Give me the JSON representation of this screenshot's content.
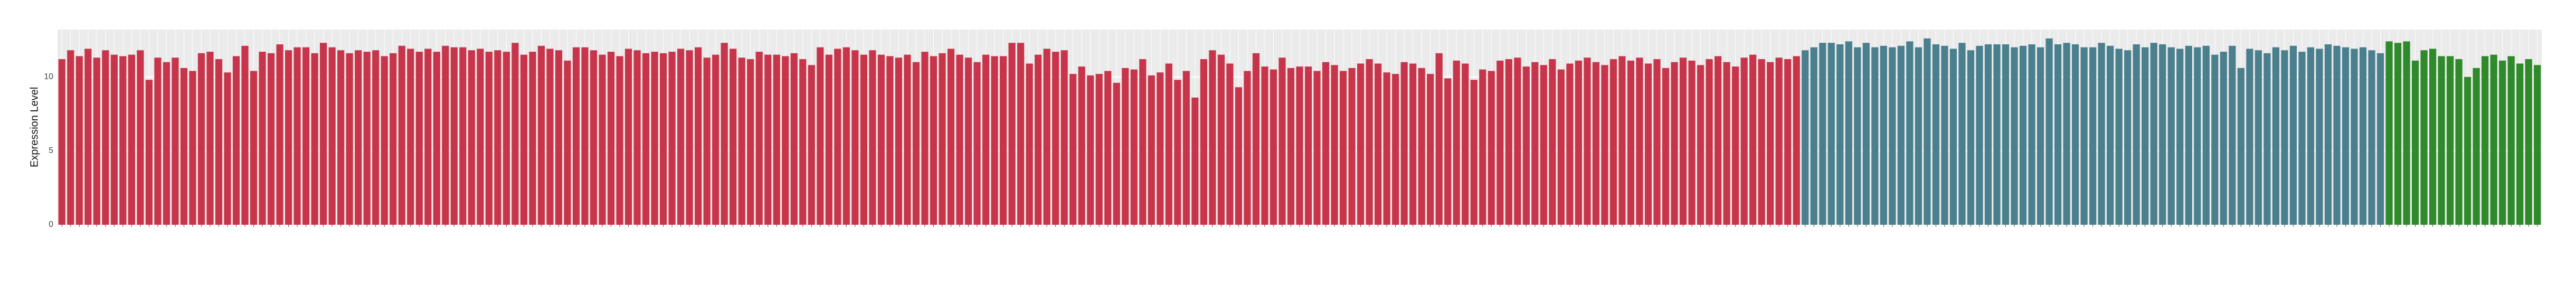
{
  "chart_data": {
    "type": "bar",
    "y_label": "Expression Level",
    "ylim": [
      0,
      13.2
    ],
    "yticks": [
      0,
      5,
      10
    ],
    "grid": true,
    "series": [
      {
        "color": "#c8354b",
        "categories": [
          null,
          null,
          null,
          null,
          null,
          null,
          null,
          null,
          null,
          null,
          null,
          null,
          null,
          null,
          null,
          null,
          null,
          null,
          null,
          null,
          null,
          null,
          null,
          null,
          null,
          null,
          null,
          null,
          null,
          null,
          null,
          null,
          null,
          null,
          null,
          null,
          null,
          null,
          null,
          null,
          null,
          null,
          null,
          null,
          null,
          null,
          null,
          null,
          null,
          null,
          null,
          null,
          null,
          null,
          null,
          null,
          null,
          null,
          null,
          null,
          null,
          null,
          null,
          null,
          null,
          null,
          null,
          null,
          null,
          null,
          null,
          null,
          null,
          null,
          null,
          null,
          null,
          null,
          null,
          null,
          null,
          null,
          null,
          null,
          null,
          null,
          null,
          null,
          null,
          null,
          null,
          null,
          null,
          null,
          null,
          null,
          null,
          null,
          null,
          null,
          null,
          null,
          null,
          null,
          null,
          null,
          null,
          null,
          null,
          null,
          null,
          null,
          null,
          null,
          null,
          null,
          null,
          null,
          null,
          null,
          null,
          null,
          null,
          null,
          null,
          null,
          null,
          null,
          null,
          null,
          null,
          null,
          null,
          null,
          null,
          null,
          null,
          null,
          null,
          null,
          null,
          null,
          null,
          null,
          null,
          null,
          null,
          null,
          null,
          null,
          null,
          null,
          null,
          null,
          null,
          null,
          null,
          null,
          null,
          null,
          null,
          null,
          null,
          null,
          null,
          null,
          null,
          null,
          null,
          null,
          null,
          null,
          null,
          null,
          null,
          null,
          null,
          null,
          null,
          null,
          null,
          null,
          null,
          null,
          null,
          null,
          null,
          null,
          null,
          null,
          null,
          null,
          null,
          null,
          null,
          null,
          null,
          null,
          null,
          null
        ],
        "values": [
          11.2,
          11.8,
          11.4,
          11.9,
          11.3,
          11.8,
          11.5,
          11.4,
          11.5,
          11.8,
          9.8,
          11.3,
          11.0,
          11.3,
          10.6,
          10.4,
          11.6,
          11.7,
          11.2,
          10.3,
          11.4,
          12.1,
          10.4,
          11.7,
          11.6,
          12.2,
          11.8,
          12.0,
          12.0,
          11.6,
          12.3,
          12.0,
          11.8,
          11.6,
          11.8,
          11.7,
          11.8,
          11.4,
          11.6,
          12.1,
          11.9,
          11.7,
          11.9,
          11.7,
          12.1,
          12.0,
          12.0,
          11.8,
          11.9,
          11.7,
          11.8,
          11.7,
          12.3,
          11.5,
          11.7,
          12.1,
          11.9,
          11.8,
          11.1,
          12.0,
          12.0,
          11.8,
          11.5,
          11.7,
          11.4,
          11.9,
          11.8,
          11.6,
          11.7,
          11.6,
          11.7,
          11.9,
          11.8,
          12.0,
          11.3,
          11.5,
          12.3,
          11.9,
          11.3,
          11.2,
          11.7,
          11.5,
          11.5,
          11.4,
          11.6,
          11.2,
          10.8,
          12.0,
          11.5,
          11.9,
          12.0,
          11.8,
          11.5,
          11.8,
          11.5,
          11.4,
          11.3,
          11.5,
          11.0,
          11.7,
          11.4,
          11.6,
          11.9,
          11.5,
          11.3,
          11.0,
          11.5,
          11.4,
          11.4,
          12.3,
          12.3,
          10.9,
          11.5,
          11.9,
          11.7,
          11.8,
          10.2,
          10.7,
          10.1,
          10.2,
          10.4,
          9.6,
          10.6,
          10.5,
          11.2,
          10.1,
          10.3,
          10.9,
          9.8,
          10.4,
          8.6,
          11.2,
          11.8,
          11.5,
          10.9,
          9.3,
          10.4,
          11.6,
          10.7,
          10.5,
          11.3,
          10.6,
          10.7,
          10.7,
          10.4,
          11.0,
          10.8,
          10.4,
          10.6,
          10.9,
          11.2,
          10.9,
          10.3,
          10.2,
          11.0,
          10.9,
          10.6,
          10.2,
          11.6,
          9.9,
          11.1,
          10.9,
          9.8,
          10.5,
          10.4,
          11.1,
          11.2,
          11.3,
          10.7,
          11.0,
          10.8,
          11.2,
          10.5,
          10.9,
          11.1,
          11.3,
          11.0,
          10.8,
          11.2,
          11.4,
          11.1,
          11.3,
          10.9,
          11.2,
          10.6,
          11.0,
          11.3,
          11.1,
          10.8,
          11.2,
          11.4,
          11.0,
          10.7,
          11.3,
          11.5,
          11.2,
          11.0,
          11.3,
          11.2,
          11.4
        ]
      },
      {
        "color": "#4a7f8e",
        "categories": [
          null,
          null,
          null,
          null,
          null,
          null,
          null,
          null,
          null,
          null,
          null,
          null,
          null,
          null,
          null,
          null,
          null,
          null,
          null,
          null,
          null,
          null,
          null,
          null,
          null,
          null,
          null,
          null,
          null,
          null,
          null,
          null,
          null,
          null,
          null,
          null,
          null,
          null,
          null,
          null,
          null,
          null,
          null,
          null,
          null,
          null,
          null,
          null,
          null,
          null,
          null,
          null,
          null,
          null,
          null,
          null,
          null,
          null,
          null,
          null,
          null,
          null,
          null,
          null,
          null,
          null,
          null
        ],
        "values": [
          11.8,
          12.0,
          12.3,
          12.3,
          12.2,
          12.4,
          12.0,
          12.3,
          12.0,
          12.1,
          12.0,
          12.1,
          12.4,
          12.0,
          12.6,
          12.2,
          12.1,
          11.9,
          12.3,
          11.8,
          12.1,
          12.2,
          12.2,
          12.2,
          12.0,
          12.1,
          12.2,
          12.0,
          12.6,
          12.2,
          12.3,
          12.2,
          12.0,
          12.0,
          12.3,
          12.1,
          11.9,
          11.8,
          12.2,
          12.0,
          12.3,
          12.2,
          12.0,
          11.9,
          12.1,
          12.0,
          12.1,
          11.5,
          11.7,
          12.1,
          10.6,
          11.9,
          11.8,
          11.6,
          12.0,
          11.8,
          12.1,
          11.7,
          12.0,
          11.9,
          12.2,
          12.1,
          12.0,
          11.9,
          12.0,
          11.8,
          11.6
        ]
      },
      {
        "color": "#2e8a2a",
        "categories": [
          null,
          null,
          null,
          null,
          null,
          null,
          null,
          null,
          null,
          null,
          null,
          null,
          null,
          null,
          null,
          null,
          null,
          null
        ],
        "values": [
          12.4,
          12.3,
          12.4,
          11.1,
          11.8,
          11.9,
          11.4,
          11.4,
          11.2,
          10.0,
          10.6,
          11.4,
          11.5,
          11.1,
          11.4,
          10.9,
          11.2,
          10.8
        ]
      }
    ]
  }
}
